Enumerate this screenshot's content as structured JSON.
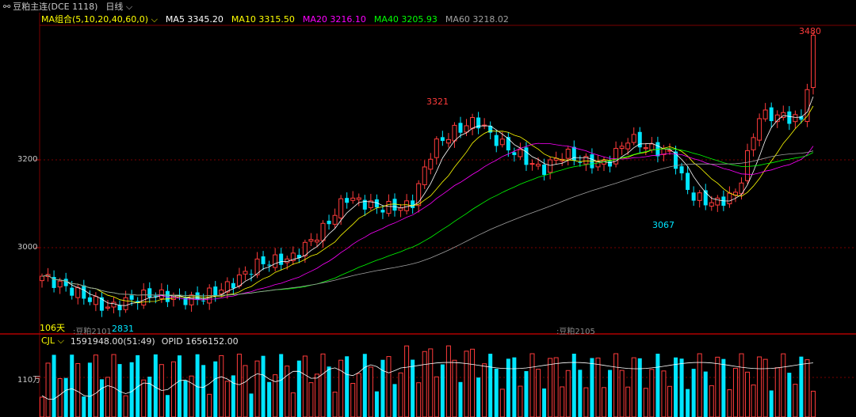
{
  "header": {
    "link_icon": "link-icon",
    "title": "豆粕主连(DCE 1118)",
    "period": "日线",
    "period_arrow": "chevron-down-icon"
  },
  "ma_legend": {
    "group": "MA组合(5,10,20,40,60,0)",
    "ma5": "MA5 3345.20",
    "ma10": "MA10 3315.50",
    "ma20": "MA20 3216.10",
    "ma40": "MA40 3205.93",
    "ma60": "MA60 3218.02",
    "colors": {
      "group": "#ffff00",
      "ma5": "#ffffff",
      "ma10": "#ffff00",
      "ma20": "#ff00ff",
      "ma40": "#00ff00",
      "ma60": "#a0a0a0"
    }
  },
  "price_axis": {
    "labels": [
      "3200",
      "3000"
    ]
  },
  "annotations": {
    "high_recent": "3480",
    "high_mid": "3321",
    "low_mid": "3067",
    "low_left": "2831"
  },
  "left_info": {
    "days": "106天",
    "contract_old": ":豆粕2101",
    "contract_new": ":豆粕2105"
  },
  "volume_panel": {
    "name": "CJL",
    "value": "1591948.00(51:49)",
    "opid": "OPID 1656152.00",
    "axis_label": "110万"
  },
  "colors": {
    "up": "#ff3b3b",
    "down": "#00e5ff",
    "grid": "#7a0000"
  }
}
